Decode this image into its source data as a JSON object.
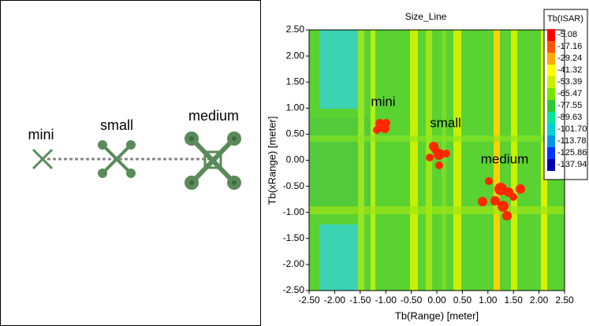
{
  "left_panel": {
    "labels": [
      "mini",
      "small",
      "medium"
    ]
  },
  "chart_data": {
    "type": "heatmap",
    "title": "Size_Line",
    "xlabel": "Tb(Range) [meter]",
    "ylabel": "Tb(xRange) [meter]",
    "xlim": [
      -2.5,
      2.5
    ],
    "ylim": [
      -2.5,
      2.5
    ],
    "xticks": [
      {
        "value": -2.5,
        "label": "-2.50"
      },
      {
        "value": -2,
        "label": "-2.00"
      },
      {
        "value": -1.5,
        "label": "-1.50"
      },
      {
        "value": -1,
        "label": "-1.00"
      },
      {
        "value": -0.5,
        "label": "-0.50"
      },
      {
        "value": 0,
        "label": "0.00"
      },
      {
        "value": 0.5,
        "label": "0.50"
      },
      {
        "value": 1,
        "label": "1.00"
      },
      {
        "value": 1.5,
        "label": "1.50"
      },
      {
        "value": 2,
        "label": "2.00"
      },
      {
        "value": 2.5,
        "label": "2.50"
      }
    ],
    "yticks": [
      {
        "value": -2.5,
        "label": "-2.50"
      },
      {
        "value": -2,
        "label": "-2.00"
      },
      {
        "value": -1.5,
        "label": "-1.50"
      },
      {
        "value": -1,
        "label": "-1.00"
      },
      {
        "value": -0.5,
        "label": "-0.50"
      },
      {
        "value": 0,
        "label": "0.00"
      },
      {
        "value": 0.5,
        "label": "0.50"
      },
      {
        "value": 1,
        "label": "1.00"
      },
      {
        "value": 1.5,
        "label": "1.50"
      },
      {
        "value": 2,
        "label": "2.00"
      },
      {
        "value": 2.5,
        "label": "2.50"
      }
    ],
    "annotations": [
      "mini",
      "small",
      "medium"
    ],
    "colorbar": {
      "title": "Tb(ISAR)",
      "levels": [
        -5.08,
        -17.16,
        -29.24,
        -41.32,
        -53.39,
        -65.47,
        -77.55,
        -89.63,
        {
          "value": -101.7,
          "label": "-101.70"
        },
        -113.78,
        -125.86,
        -137.94
      ],
      "colors": [
        "#ff0000",
        "#ff5500",
        "#ffaa00",
        "#ffff00",
        "#c8f000",
        "#78e600",
        "#32c832",
        "#00e696",
        "#00d2d2",
        "#0096e6",
        "#0032ff",
        "#0000b4"
      ]
    }
  }
}
